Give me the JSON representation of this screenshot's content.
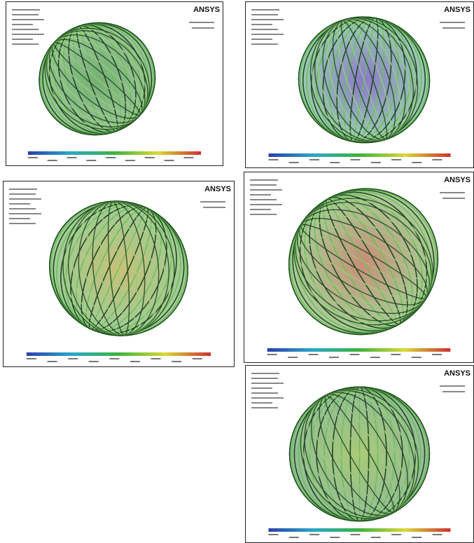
{
  "panels": [
    {
      "brand": "ANSYS"
    },
    {
      "brand": "ANSYS"
    },
    {
      "brand": "ANSYS"
    },
    {
      "brand": "ANSYS"
    },
    {
      "brand": "ANSYS"
    }
  ]
}
